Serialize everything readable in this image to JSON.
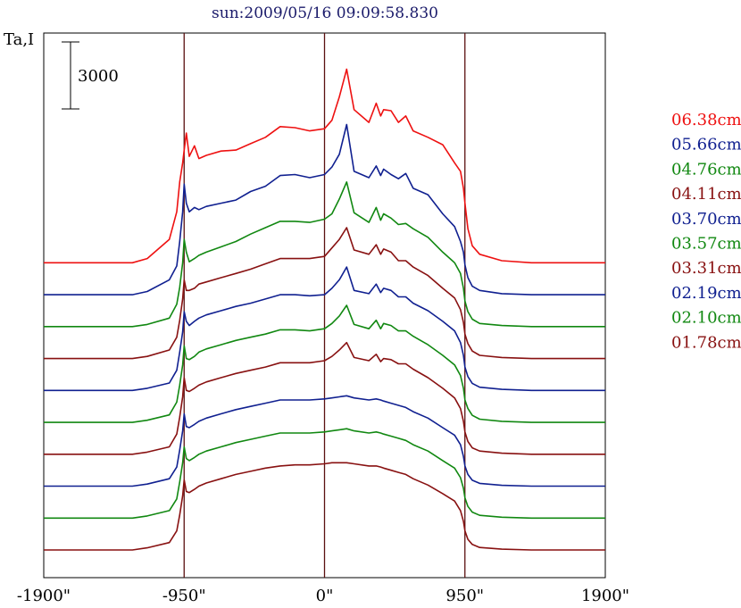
{
  "chart_data": {
    "type": "line",
    "title": "sun:2009/05/16 09:09:58.830",
    "ylabel": "Ta,I",
    "scale_bar": {
      "label": "3000",
      "value": 3000
    },
    "xlim": [
      -1900,
      1900
    ],
    "x_ticks": [
      {
        "value": -1900,
        "label": "-1900\""
      },
      {
        "value": -950,
        "label": "-950\""
      },
      {
        "value": 0,
        "label": "0\""
      },
      {
        "value": 950,
        "label": "950\""
      },
      {
        "value": 1900,
        "label": "1900\""
      }
    ],
    "vertical_markers": [
      -950,
      0,
      950
    ],
    "profile_x": [
      -1900,
      -1300,
      -1200,
      -1050,
      -1000,
      -980,
      -960,
      -950,
      -935,
      -915,
      -880,
      -850,
      -800,
      -700,
      -600,
      -500,
      -400,
      -300,
      -200,
      -100,
      0,
      50,
      100,
      150,
      200,
      300,
      350,
      380,
      400,
      450,
      500,
      550,
      600,
      700,
      800,
      880,
      920,
      940,
      950,
      970,
      1000,
      1050,
      1200,
      1400,
      1900
    ],
    "series": [
      {
        "name": "06.38cm",
        "color": "#ee1111",
        "offset": 11200,
        "y": [
          0,
          0,
          200,
          1100,
          2400,
          3800,
          4700,
          5300,
          6100,
          5000,
          5500,
          4900,
          5050,
          5250,
          5300,
          5600,
          5900,
          6400,
          6350,
          6200,
          6300,
          6700,
          7800,
          9100,
          7200,
          6600,
          7500,
          6900,
          7200,
          7150,
          6600,
          6900,
          6200,
          5900,
          5550,
          4700,
          4300,
          3500,
          2800,
          1600,
          800,
          400,
          100,
          0,
          0
        ]
      },
      {
        "name": "05.66cm",
        "color": "#102090",
        "offset": 9700,
        "y": [
          0,
          0,
          150,
          700,
          1350,
          2500,
          3900,
          5200,
          4300,
          3900,
          4100,
          4000,
          4150,
          4300,
          4450,
          4850,
          5100,
          5600,
          5650,
          5500,
          5650,
          6000,
          6600,
          8000,
          5800,
          5500,
          6050,
          5600,
          5900,
          5650,
          5450,
          5700,
          5000,
          4700,
          3800,
          3200,
          2500,
          2000,
          1400,
          800,
          400,
          200,
          50,
          0,
          0
        ]
      },
      {
        "name": "04.76cm",
        "color": "#118811",
        "offset": 8200,
        "y": [
          0,
          0,
          100,
          400,
          1050,
          1850,
          3000,
          4100,
          3500,
          3050,
          3200,
          3350,
          3500,
          3750,
          4000,
          4350,
          4650,
          4950,
          4950,
          4900,
          5050,
          5300,
          6000,
          6800,
          5350,
          4900,
          5600,
          5000,
          5300,
          5100,
          4800,
          4850,
          4600,
          4200,
          3500,
          3000,
          2500,
          1800,
          1200,
          700,
          350,
          150,
          50,
          0,
          0
        ]
      },
      {
        "name": "04.11cm",
        "color": "#881111",
        "offset": 6700,
        "y": [
          0,
          0,
          100,
          400,
          1000,
          1800,
          2800,
          3700,
          3200,
          3200,
          3300,
          3500,
          3600,
          3800,
          4000,
          4200,
          4450,
          4700,
          4700,
          4700,
          4800,
          5200,
          5600,
          6150,
          5100,
          4900,
          5350,
          4900,
          5150,
          5000,
          4600,
          4600,
          4300,
          3900,
          3300,
          2850,
          2300,
          1700,
          1150,
          700,
          350,
          150,
          50,
          0,
          0
        ]
      },
      {
        "name": "03.70cm",
        "color": "#102090",
        "offset": 5200,
        "y": [
          0,
          0,
          100,
          350,
          950,
          1800,
          2750,
          3700,
          3250,
          3050,
          3250,
          3400,
          3550,
          3750,
          3950,
          4100,
          4300,
          4500,
          4500,
          4450,
          4500,
          4800,
          5200,
          5800,
          4700,
          4550,
          5000,
          4600,
          4800,
          4700,
          4400,
          4400,
          4100,
          3750,
          3250,
          2800,
          2250,
          1650,
          1100,
          650,
          330,
          150,
          50,
          0,
          0
        ]
      },
      {
        "name": "03.57cm",
        "color": "#118811",
        "offset": 3700,
        "y": [
          0,
          0,
          100,
          350,
          950,
          1750,
          2700,
          3600,
          3000,
          2950,
          3100,
          3300,
          3450,
          3650,
          3850,
          4000,
          4150,
          4350,
          4350,
          4300,
          4400,
          4650,
          5000,
          5500,
          4600,
          4400,
          4800,
          4400,
          4650,
          4550,
          4300,
          4300,
          4050,
          3650,
          3150,
          2700,
          2200,
          1600,
          1050,
          650,
          330,
          150,
          50,
          0,
          0
        ]
      },
      {
        "name": "03.31cm",
        "color": "#881111",
        "offset": 2200,
        "y": [
          0,
          0,
          100,
          350,
          950,
          1750,
          2700,
          3600,
          3000,
          2950,
          3100,
          3250,
          3400,
          3600,
          3800,
          3950,
          4100,
          4300,
          4300,
          4300,
          4400,
          4600,
          4900,
          5250,
          4550,
          4400,
          4700,
          4350,
          4500,
          4450,
          4250,
          4250,
          4000,
          3600,
          3100,
          2650,
          2150,
          1550,
          1050,
          600,
          300,
          150,
          50,
          0,
          0
        ]
      },
      {
        "name": "02.19cm",
        "color": "#102090",
        "offset": 700,
        "y": [
          0,
          0,
          100,
          350,
          900,
          1700,
          2600,
          3400,
          2800,
          2750,
          2900,
          3050,
          3200,
          3400,
          3600,
          3750,
          3900,
          4050,
          4050,
          4050,
          4100,
          4150,
          4200,
          4250,
          4150,
          4050,
          4100,
          4050,
          4000,
          3900,
          3800,
          3700,
          3500,
          3200,
          2750,
          2400,
          1950,
          1400,
          950,
          550,
          280,
          130,
          40,
          0,
          0
        ]
      },
      {
        "name": "02.10cm",
        "color": "#118811",
        "offset": -800,
        "y": [
          0,
          0,
          100,
          350,
          900,
          1700,
          2600,
          3350,
          2800,
          2700,
          2850,
          3000,
          3150,
          3350,
          3550,
          3700,
          3850,
          4000,
          4000,
          4000,
          4050,
          4100,
          4150,
          4200,
          4100,
          4000,
          4050,
          4000,
          3950,
          3850,
          3750,
          3650,
          3450,
          3150,
          2700,
          2350,
          1900,
          1400,
          950,
          550,
          280,
          130,
          40,
          0,
          0
        ]
      },
      {
        "name": "01.78cm",
        "color": "#881111",
        "offset": -2300,
        "y": [
          0,
          0,
          100,
          350,
          900,
          1650,
          2550,
          3300,
          2750,
          2700,
          2850,
          3000,
          3150,
          3350,
          3550,
          3700,
          3850,
          3950,
          4000,
          4000,
          4050,
          4100,
          4100,
          4100,
          4050,
          3950,
          3950,
          3900,
          3850,
          3750,
          3650,
          3550,
          3350,
          3050,
          2650,
          2300,
          1850,
          1350,
          900,
          500,
          260,
          120,
          40,
          0,
          0
        ]
      }
    ],
    "ylim": [
      -3600,
      22000
    ],
    "grid": false,
    "legend": "right"
  },
  "colors": {
    "background": "#ffffff",
    "axis": "#000000",
    "marker_line": "#5a1010"
  }
}
